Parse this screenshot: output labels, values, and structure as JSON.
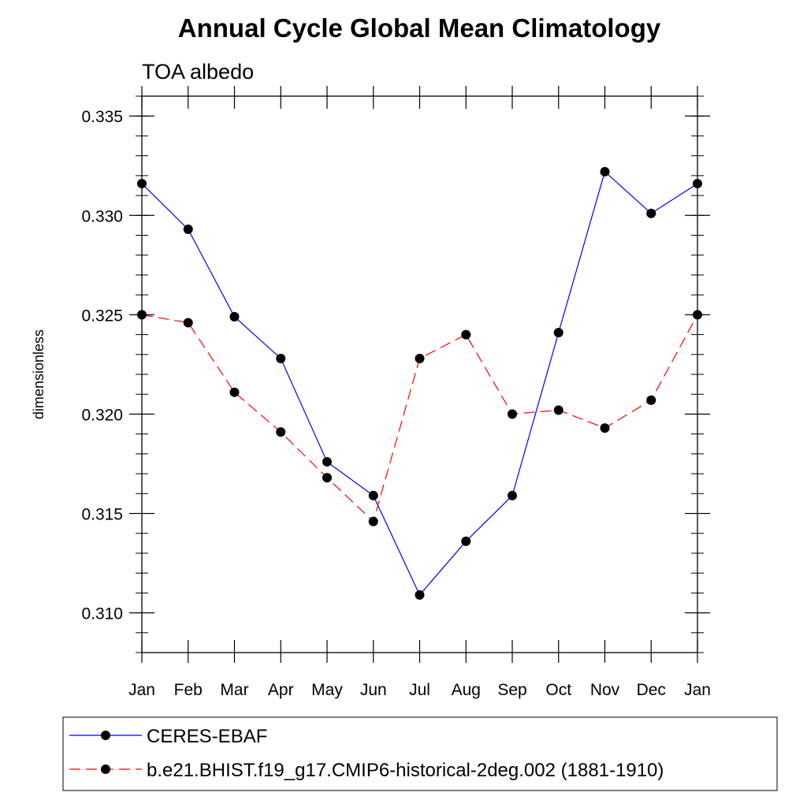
{
  "chart_data": {
    "type": "line",
    "title": "Annual Cycle Global Mean Climatology",
    "subtitle": "TOA albedo",
    "xlabel": "",
    "ylabel": "dimensionless",
    "categories": [
      "Jan",
      "Feb",
      "Mar",
      "Apr",
      "May",
      "Jun",
      "Jul",
      "Aug",
      "Sep",
      "Oct",
      "Nov",
      "Dec",
      "Jan"
    ],
    "ylim": [
      0.308,
      0.336
    ],
    "yticks": [
      "0.310",
      "0.315",
      "0.320",
      "0.325",
      "0.330",
      "0.335"
    ],
    "grid": false,
    "legend_position": "bottom",
    "series": [
      {
        "name": "CERES-EBAF",
        "color": "#0000ff",
        "line_style": "solid",
        "marker": "filled-circle",
        "values": [
          0.3316,
          0.3293,
          0.3249,
          0.3228,
          0.3176,
          0.3159,
          0.3109,
          0.3136,
          0.3159,
          0.3241,
          0.3322,
          0.3301,
          0.3316
        ]
      },
      {
        "name": "b.e21.BHIST.f19_g17.CMIP6-historical-2deg.002 (1881-1910)",
        "color": "#ff0000",
        "line_style": "dashed",
        "marker": "filled-circle",
        "values": [
          0.325,
          0.3246,
          0.3211,
          0.3191,
          0.3168,
          0.3146,
          0.3228,
          0.324,
          0.32,
          0.3202,
          0.3193,
          0.3207,
          0.325
        ]
      }
    ]
  }
}
